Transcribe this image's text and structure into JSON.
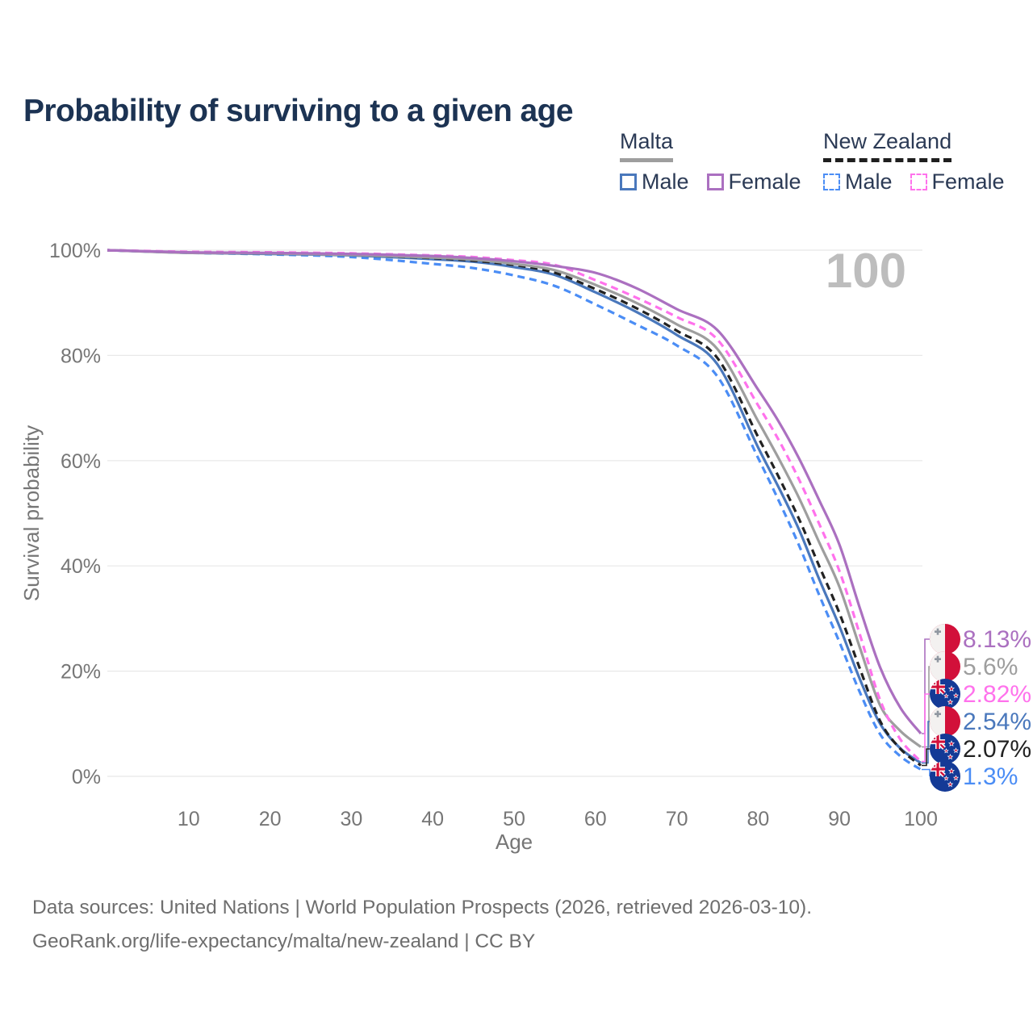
{
  "page_title": "Probability of surviving to a given age",
  "legend": {
    "groups": [
      {
        "country": "Malta",
        "line_style": "solid",
        "underline_color": "#9e9e9e",
        "items": [
          {
            "label": "Male",
            "color": "#4a78bc"
          },
          {
            "label": "Female",
            "color": "#ab70c0"
          }
        ]
      },
      {
        "country": "New Zealand",
        "line_style": "dashed",
        "underline_color": "#1f1f1f",
        "items": [
          {
            "label": "Male",
            "color": "#4b8df5"
          },
          {
            "label": "Female",
            "color": "#ff72ec"
          }
        ]
      }
    ]
  },
  "chart_data": {
    "type": "line",
    "title": "Probability of surviving to a given age",
    "xlabel": "Age",
    "ylabel": "Survival probability",
    "x_range": [
      0,
      100
    ],
    "y_range": [
      0,
      100
    ],
    "grid": "horizontal-only",
    "legend_position": "top-right",
    "hover_age_label": "100",
    "x_ticks": [
      {
        "v": 10,
        "label": "10"
      },
      {
        "v": 20,
        "label": "20"
      },
      {
        "v": 30,
        "label": "30"
      },
      {
        "v": 40,
        "label": "40"
      },
      {
        "v": 50,
        "label": "50"
      },
      {
        "v": 60,
        "label": "60"
      },
      {
        "v": 70,
        "label": "70"
      },
      {
        "v": 80,
        "label": "80"
      },
      {
        "v": 90,
        "label": "90"
      },
      {
        "v": 100,
        "label": "100"
      }
    ],
    "y_ticks": [
      {
        "v": 0,
        "label": "0%"
      },
      {
        "v": 20,
        "label": "20%"
      },
      {
        "v": 40,
        "label": "40%"
      },
      {
        "v": 60,
        "label": "60%"
      },
      {
        "v": 80,
        "label": "80%"
      },
      {
        "v": 100,
        "label": "100%"
      }
    ],
    "ages": [
      0,
      10,
      20,
      30,
      40,
      45,
      50,
      55,
      60,
      65,
      70,
      75,
      80,
      82.5,
      85,
      87.5,
      90,
      92.5,
      95,
      97.5,
      100
    ],
    "series": [
      {
        "id": "nz-male",
        "name": "New Zealand Male",
        "country": "New Zealand",
        "sex": "male",
        "flag": "nz",
        "line_style": "dashed",
        "color": "#4b8df5",
        "end_label": "1.3%",
        "end_value": 1.3,
        "values": [
          100,
          99.5,
          99.2,
          98.7,
          97.4,
          96.6,
          95.2,
          93.2,
          89.7,
          85.9,
          81.9,
          76.0,
          60.5,
          52.5,
          44.0,
          34.5,
          25.5,
          16.0,
          8.0,
          3.8,
          1.3
        ]
      },
      {
        "id": "malta-male",
        "name": "Malta Male",
        "country": "Malta",
        "sex": "male",
        "flag": "malta",
        "line_style": "solid",
        "color": "#4a78bc",
        "end_label": "2.54%",
        "end_value": 2.54,
        "values": [
          100,
          99.5,
          99.3,
          99.0,
          98.3,
          97.8,
          96.8,
          95.3,
          92.0,
          88.3,
          83.9,
          78.3,
          62.5,
          55.0,
          47.0,
          37.5,
          28.5,
          18.5,
          10.0,
          5.3,
          2.54
        ]
      },
      {
        "id": "nz-total",
        "name": "New Zealand",
        "country": "New Zealand",
        "sex": "total",
        "flag": "nz",
        "line_style": "dashed",
        "color": "#222222",
        "end_label": "2.07%",
        "end_value": 2.07,
        "values": [
          100,
          99.6,
          99.4,
          99.1,
          98.5,
          98.0,
          97.2,
          95.7,
          92.6,
          89.0,
          84.7,
          79.5,
          64.5,
          57.0,
          49.0,
          40.0,
          31.0,
          20.5,
          10.5,
          5.2,
          2.07
        ]
      },
      {
        "id": "malta-total",
        "name": "Malta",
        "country": "Malta",
        "sex": "total",
        "flag": "malta",
        "line_style": "solid",
        "color": "#9e9e9e",
        "end_label": "5.6%",
        "end_value": 5.6,
        "values": [
          100,
          99.5,
          99.4,
          99.1,
          98.6,
          98.2,
          97.4,
          96.2,
          93.4,
          90.0,
          85.9,
          81.2,
          67.5,
          60.5,
          53.0,
          44.5,
          36.0,
          24.5,
          13.5,
          8.6,
          5.6
        ]
      },
      {
        "id": "nz-female",
        "name": "New Zealand Female",
        "country": "New Zealand",
        "sex": "female",
        "flag": "nz",
        "line_style": "dashed",
        "color": "#ff72ec",
        "end_label": "2.82%",
        "end_value": 2.82,
        "values": [
          100,
          99.7,
          99.6,
          99.4,
          99.0,
          98.7,
          98.1,
          97.2,
          94.3,
          91.0,
          87.3,
          83.0,
          70.5,
          64.0,
          56.5,
          48.0,
          39.0,
          27.0,
          14.5,
          7.0,
          2.82
        ]
      },
      {
        "id": "malta-female",
        "name": "Malta Female",
        "country": "Malta",
        "sex": "female",
        "flag": "malta",
        "line_style": "solid",
        "color": "#ab70c0",
        "end_label": "8.13%",
        "end_value": 8.13,
        "values": [
          100,
          99.6,
          99.5,
          99.3,
          98.9,
          98.5,
          97.9,
          97.0,
          95.7,
          92.8,
          88.8,
          84.8,
          73.5,
          67.5,
          60.5,
          52.5,
          44.0,
          32.0,
          20.7,
          13.0,
          8.13
        ]
      }
    ],
    "end_label_rows": [
      "malta-female",
      "malta-total",
      "nz-female",
      "malta-male",
      "nz-total",
      "nz-male"
    ],
    "flag_colors": {
      "malta_white": "#f3f1f0",
      "malta_red": "#d2103a",
      "malta_cross": "#9097a1",
      "nz_blue": "#143a96",
      "nz_red": "#d2103a",
      "nz_white": "#ffffff"
    },
    "style_colors": {
      "grid": "#e8e8e8",
      "axis_text": "#767676",
      "watermark": "#bdbdbd"
    }
  },
  "footer": {
    "line1": "Data sources: United Nations | World Population Prospects (2026, retrieved 2026-03-10).",
    "line2": "GeoRank.org/life-expectancy/malta/new-zealand | CC BY"
  }
}
